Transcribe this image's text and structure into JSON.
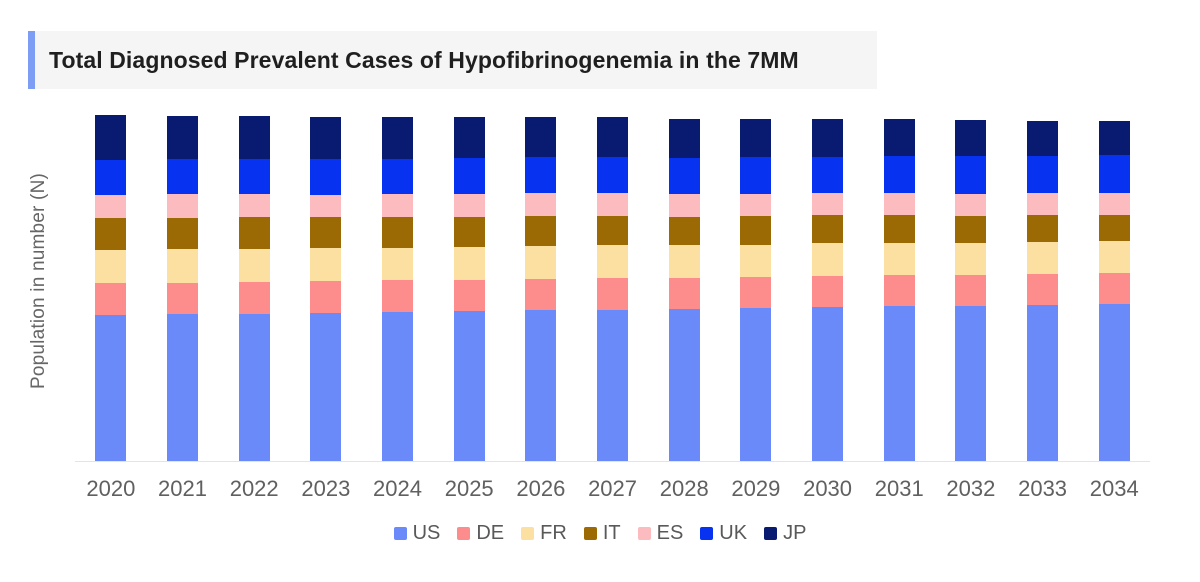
{
  "title": {
    "text": "Total Diagnosed Prevalent Cases of Hypofibrinogenemia in the 7MM"
  },
  "accent_color": "#7d9cf3",
  "title_background": "#f5f5f6",
  "chart_data": {
    "type": "bar",
    "stacked": true,
    "title": "Total Diagnosed Prevalent Cases of Hypofibrinogenemia in the 7MM",
    "xlabel": "",
    "ylabel": "Population in number (N)",
    "grid": false,
    "y_tick_labels_shown": false,
    "legend_position": "bottom",
    "units": "relative units estimated from bar heights; 2020 total normalized to ~100 (chart shows no numeric y-axis labels)",
    "categories": [
      "2020",
      "2021",
      "2022",
      "2023",
      "2024",
      "2025",
      "2026",
      "2027",
      "2028",
      "2029",
      "2030",
      "2031",
      "2032",
      "2033",
      "2034"
    ],
    "series": [
      {
        "name": "US",
        "color": "#6b8afa",
        "values": [
          42.2,
          42.4,
          42.6,
          42.9,
          43.1,
          43.3,
          43.6,
          43.8,
          44.0,
          44.2,
          44.5,
          44.7,
          44.9,
          45.2,
          45.4
        ]
      },
      {
        "name": "DE",
        "color": "#fc8d8c",
        "values": [
          9.2,
          9.2,
          9.2,
          9.1,
          9.1,
          9.1,
          9.1,
          9.1,
          9.0,
          9.0,
          9.0,
          9.0,
          8.9,
          8.9,
          8.9
        ]
      },
      {
        "name": "FR",
        "color": "#fce0a1",
        "values": [
          9.6,
          9.6,
          9.6,
          9.5,
          9.5,
          9.5,
          9.5,
          9.5,
          9.4,
          9.4,
          9.4,
          9.4,
          9.3,
          9.3,
          9.3
        ]
      },
      {
        "name": "IT",
        "color": "#9c6a04",
        "values": [
          9.3,
          9.2,
          9.1,
          8.9,
          8.8,
          8.7,
          8.6,
          8.5,
          8.3,
          8.2,
          8.1,
          8.0,
          7.8,
          7.7,
          7.6
        ]
      },
      {
        "name": "ES",
        "color": "#fcbbbe",
        "values": [
          6.7,
          6.7,
          6.7,
          6.6,
          6.6,
          6.6,
          6.5,
          6.5,
          6.5,
          6.5,
          6.4,
          6.4,
          6.4,
          6.3,
          6.3
        ]
      },
      {
        "name": "UK",
        "color": "#0632f0",
        "values": [
          10.0,
          10.1,
          10.1,
          10.2,
          10.3,
          10.3,
          10.4,
          10.5,
          10.5,
          10.6,
          10.6,
          10.7,
          10.8,
          10.8,
          10.9
        ]
      },
      {
        "name": "JP",
        "color": "#081b70",
        "values": [
          12.9,
          12.7,
          12.5,
          12.3,
          12.1,
          11.9,
          11.7,
          11.5,
          11.3,
          11.1,
          10.8,
          10.6,
          10.4,
          10.2,
          10.0
        ]
      }
    ]
  }
}
